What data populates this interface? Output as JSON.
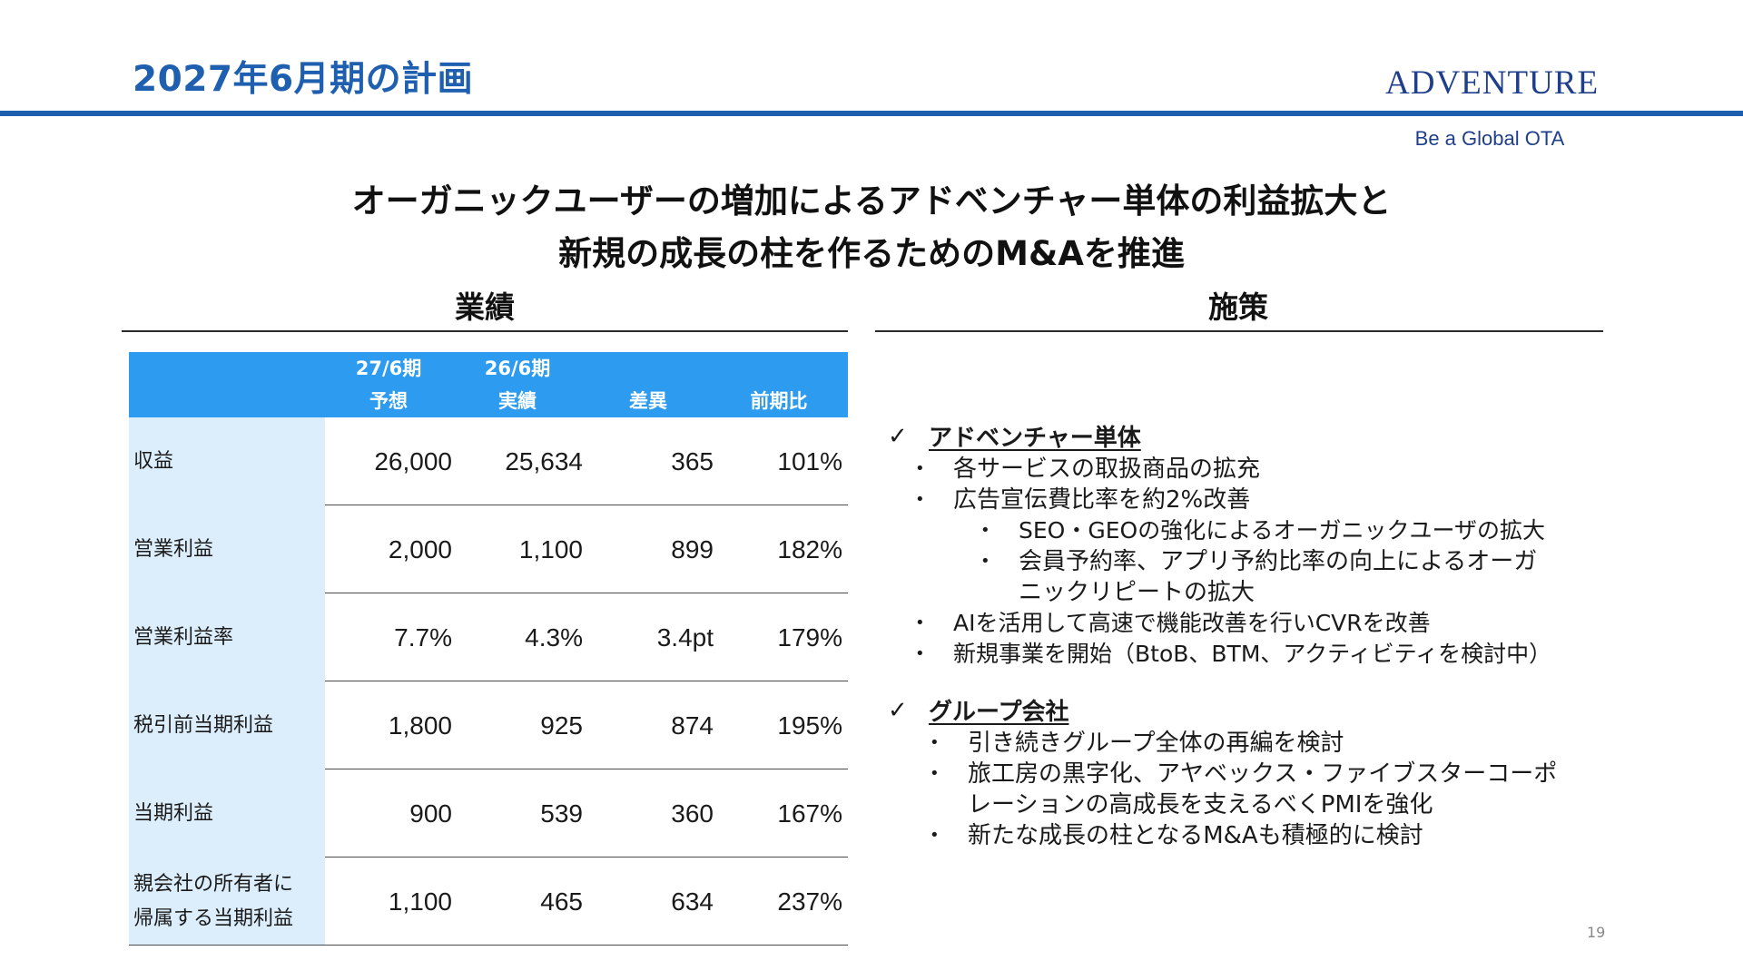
{
  "header": {
    "title": "2027年6月期の計画",
    "brand": "ADVENTURE",
    "tagline": "Be a Global OTA",
    "accent_color": "#1f5fb0"
  },
  "headline": {
    "line1": "オーガニックユーザーの増加によるアドベンチャー単体の利益拡大と",
    "line2": "新規の成長の柱を作るためのM&Aを推進"
  },
  "left_section": {
    "title": "業績",
    "table": {
      "header_color": "#2c9bf0",
      "label_bg_color": "#dcedfb",
      "columns": [
        {
          "line1": "27/6期",
          "line2": "予想"
        },
        {
          "line1": "26/6期",
          "line2": "実績"
        },
        {
          "line1": "",
          "line2": "差異"
        },
        {
          "line1": "",
          "line2": "前期比"
        }
      ],
      "rows": [
        {
          "label": [
            "収益"
          ],
          "values": [
            "26,000",
            "25,634",
            "365",
            "101%"
          ]
        },
        {
          "label": [
            "営業利益"
          ],
          "values": [
            "2,000",
            "1,100",
            "899",
            "182%"
          ]
        },
        {
          "label": [
            "営業利益率"
          ],
          "values": [
            "7.7%",
            "4.3%",
            "3.4pt",
            "179%"
          ]
        },
        {
          "label": [
            "税引前当期利益"
          ],
          "values": [
            "1,800",
            "925",
            "874",
            "195%"
          ]
        },
        {
          "label": [
            "当期利益"
          ],
          "values": [
            "900",
            "539",
            "360",
            "167%"
          ]
        },
        {
          "label": [
            "親会社の所有者に",
            "帰属する当期利益"
          ],
          "values": [
            "1,100",
            "465",
            "634",
            "237%"
          ]
        }
      ]
    }
  },
  "right_section": {
    "title": "施策",
    "check_mark": "✓",
    "bullet": "•",
    "group1": {
      "title": "アドベンチャー単体",
      "items": [
        "各サービスの取扱商品の拡充",
        "広告宣伝費比率を約2%改善",
        "SEO・GEOの強化によるオーガニックユーザの拡大",
        "会員予約率、アプリ予約比率の向上によるオーガ",
        "ニックリピートの拡大",
        "AIを活用して高速で機能改善を行いCVRを改善",
        "新規事業を開始（BtoB、BTM、アクティビティを検討中）"
      ]
    },
    "group2": {
      "title": "グループ会社",
      "items": [
        "引き続きグループ全体の再編を検討",
        "旅工房の黒字化、アヤベックス・ファイブスターコーポ",
        "レーションの高成長を支えるべくPMIを強化",
        "新たな成長の柱となるM&Aも積極的に検討"
      ]
    }
  },
  "page_number": "19"
}
